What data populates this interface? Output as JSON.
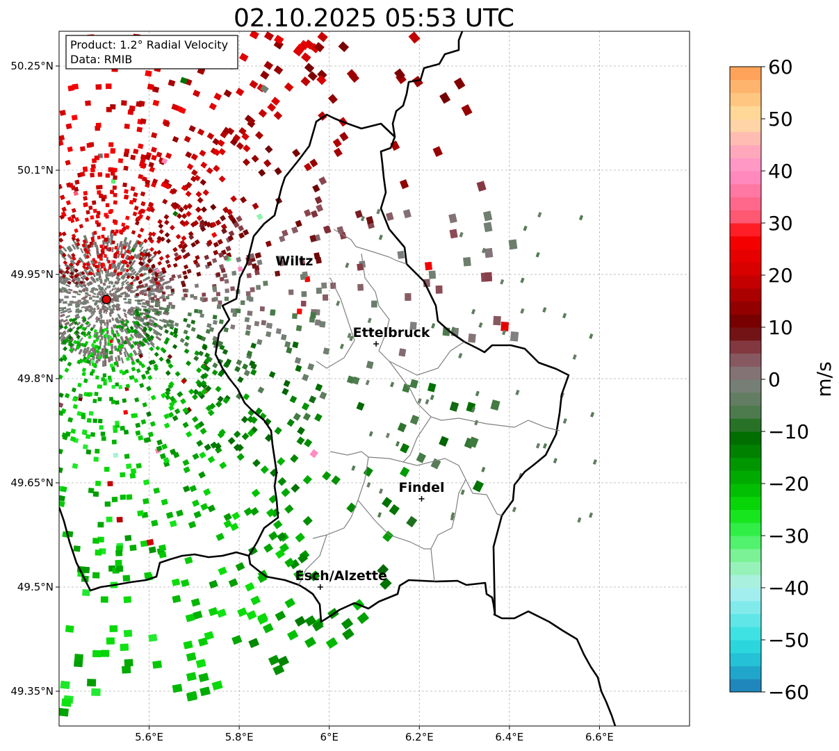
{
  "title": "02.10.2025 05:53 UTC",
  "info_box": {
    "product": "Product: 1.2° Radial Velocity",
    "data": "Data: RMIB"
  },
  "map": {
    "lon_range": [
      5.4,
      6.8
    ],
    "lat_range": [
      49.3,
      50.3
    ],
    "lon_ticks": [
      {
        "value": 5.6,
        "label": "5.6°E"
      },
      {
        "value": 5.8,
        "label": "5.8°E"
      },
      {
        "value": 6.0,
        "label": "6°E"
      },
      {
        "value": 6.2,
        "label": "6.2°E"
      },
      {
        "value": 6.4,
        "label": "6.4°E"
      },
      {
        "value": 6.6,
        "label": "6.6°E"
      }
    ],
    "lat_ticks": [
      {
        "value": 49.35,
        "label": "49.35°N"
      },
      {
        "value": 49.5,
        "label": "49.5°N"
      },
      {
        "value": 49.65,
        "label": "49.65°N"
      },
      {
        "value": 49.8,
        "label": "49.8°N"
      },
      {
        "value": 49.95,
        "label": "49.95°N"
      },
      {
        "value": 50.1,
        "label": "50.1°N"
      },
      {
        "value": 50.25,
        "label": "50.25°N"
      }
    ],
    "radar_site": {
      "lon": 5.505,
      "lat": 49.914
    },
    "cities": [
      {
        "name": "Wiltz",
        "lon": 5.93,
        "lat": 49.966,
        "marker": false
      },
      {
        "name": "Ettelbruck",
        "lon": 6.104,
        "lat": 49.85,
        "marker": true
      },
      {
        "name": "Findel",
        "lon": 6.205,
        "lat": 49.627,
        "marker": true
      },
      {
        "name": "Esch/Alzette",
        "lon": 5.98,
        "lat": 49.5,
        "marker": true
      }
    ]
  },
  "colorbar": {
    "label": "m/s",
    "min": -60,
    "max": 60,
    "ticks": [
      {
        "value": 60,
        "label": "60"
      },
      {
        "value": 50,
        "label": "50"
      },
      {
        "value": 40,
        "label": "40"
      },
      {
        "value": 30,
        "label": "30"
      },
      {
        "value": 20,
        "label": "20"
      },
      {
        "value": 10,
        "label": "10"
      },
      {
        "value": 0,
        "label": "0"
      },
      {
        "value": -10,
        "label": "−10"
      },
      {
        "value": -20,
        "label": "−20"
      },
      {
        "value": -30,
        "label": "−30"
      },
      {
        "value": -40,
        "label": "−40"
      },
      {
        "value": -50,
        "label": "−50"
      },
      {
        "value": -60,
        "label": "−60"
      }
    ],
    "stops": [
      {
        "value": -60,
        "color": "#1f77b4"
      },
      {
        "value": -55,
        "color": "#22b6d3"
      },
      {
        "value": -50,
        "color": "#2ee0e0"
      },
      {
        "value": -40,
        "color": "#b2f0f0"
      },
      {
        "value": -35,
        "color": "#8ef2a8"
      },
      {
        "value": -30,
        "color": "#3df25a"
      },
      {
        "value": -25,
        "color": "#0ae00a"
      },
      {
        "value": -20,
        "color": "#00b400"
      },
      {
        "value": -10,
        "color": "#006400"
      },
      {
        "value": -8,
        "color": "#3f7a3f"
      },
      {
        "value": 0,
        "color": "#808080"
      },
      {
        "value": 5,
        "color": "#8b4a55"
      },
      {
        "value": 10,
        "color": "#6b0000"
      },
      {
        "value": 20,
        "color": "#d20000"
      },
      {
        "value": 28,
        "color": "#ff0000"
      },
      {
        "value": 30,
        "color": "#ff5066"
      },
      {
        "value": 40,
        "color": "#ff90c8"
      },
      {
        "value": 45,
        "color": "#ffb0b8"
      },
      {
        "value": 50,
        "color": "#ffe0a0"
      },
      {
        "value": 60,
        "color": "#ff9a50"
      }
    ]
  }
}
